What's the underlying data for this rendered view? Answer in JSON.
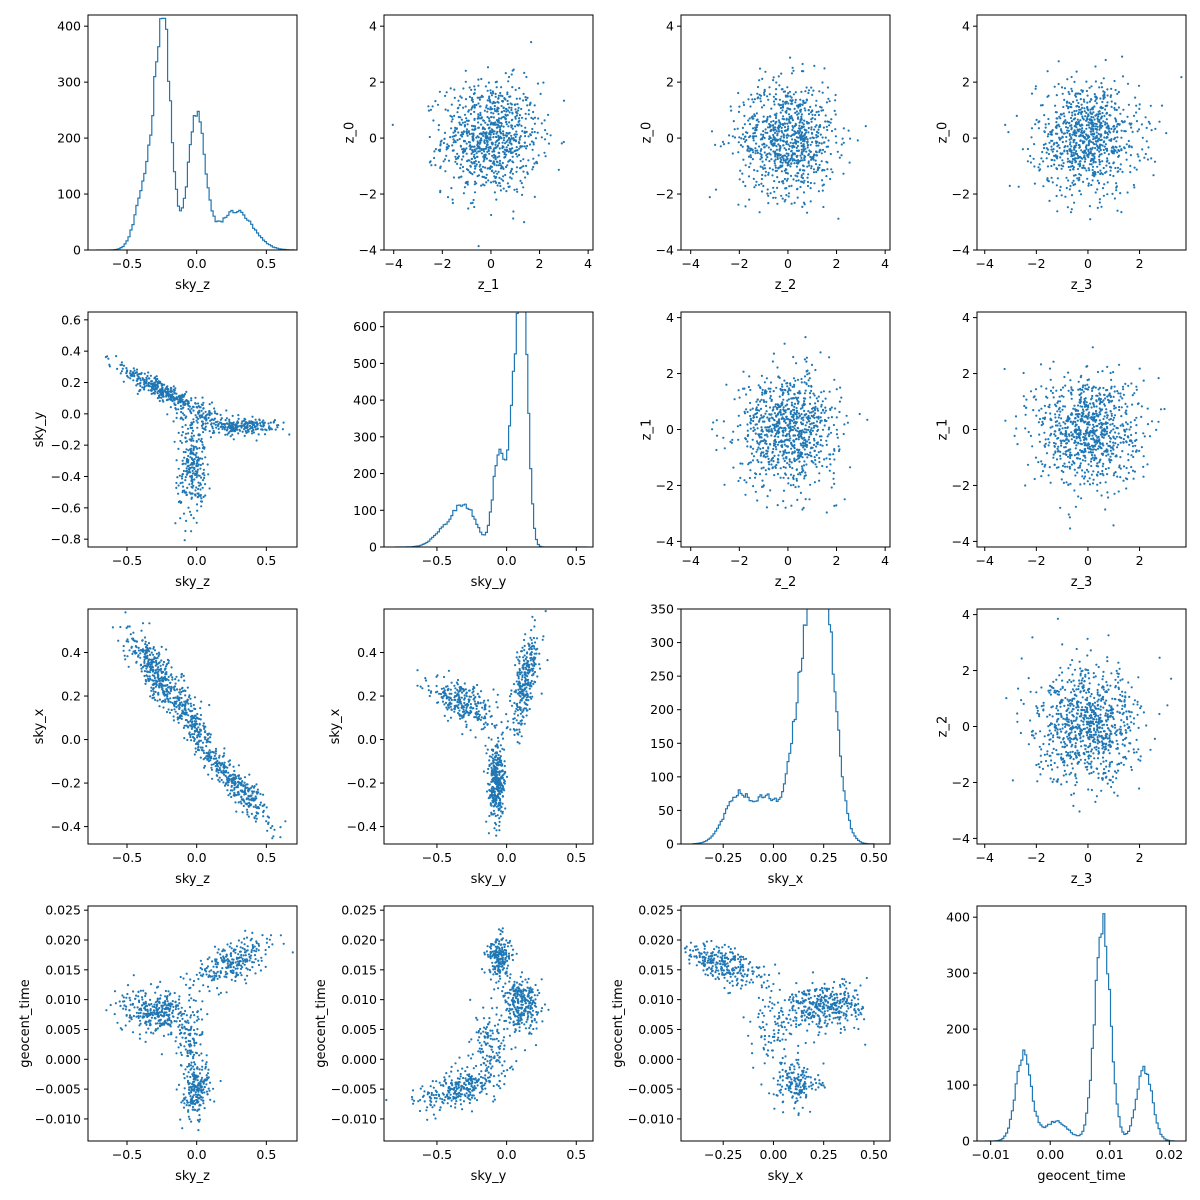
{
  "figure": {
    "type": "corner_plot",
    "marker_color": "#1f77b4",
    "background": "#ffffff"
  },
  "chart_data": [
    {
      "row": 0,
      "col": 0,
      "type": "histogram",
      "xlabel": "sky_z",
      "ylabel": "",
      "xlim": [
        -0.78,
        0.72
      ],
      "ylim": [
        0,
        420
      ],
      "xticks": [
        -0.5,
        0.0,
        0.5
      ],
      "xticklabels": [
        "−0.5",
        "0.0",
        "0.5"
      ],
      "yticks": [
        0,
        100,
        200,
        300,
        400
      ],
      "yticklabels": [
        "0",
        "100",
        "200",
        "300",
        "400"
      ],
      "bin_range": [
        -0.72,
        0.7
      ],
      "peaks": [
        {
          "center": -0.24,
          "height": 395,
          "width": 0.055
        },
        {
          "center": 0.0,
          "height": 240,
          "width": 0.06
        },
        {
          "center": -0.36,
          "height": 120,
          "width": 0.07
        },
        {
          "center": 0.28,
          "height": 70,
          "width": 0.12
        }
      ]
    },
    {
      "row": 0,
      "col": 1,
      "type": "scatter",
      "xlabel": "z_1",
      "ylabel": "z_0",
      "xlim": [
        -4.4,
        4.2
      ],
      "ylim": [
        -4.0,
        4.4
      ],
      "xticks": [
        -4,
        -2,
        0,
        2,
        4
      ],
      "xticklabels": [
        "−4",
        "−2",
        "0",
        "2",
        "4"
      ],
      "yticks": [
        -4,
        -2,
        0,
        2,
        4
      ],
      "yticklabels": [
        "−4",
        "−2",
        "0",
        "2",
        "4"
      ],
      "distribution": "gaussian",
      "mean": [
        0,
        0
      ],
      "std": [
        1,
        1
      ]
    },
    {
      "row": 0,
      "col": 2,
      "type": "scatter",
      "xlabel": "z_2",
      "ylabel": "z_0",
      "xlim": [
        -4.4,
        4.2
      ],
      "ylim": [
        -4.0,
        4.4
      ],
      "xticks": [
        -4,
        -2,
        0,
        2,
        4
      ],
      "xticklabels": [
        "−4",
        "−2",
        "0",
        "2",
        "4"
      ],
      "yticks": [
        -4,
        -2,
        0,
        2,
        4
      ],
      "yticklabels": [
        "−4",
        "−2",
        "0",
        "2",
        "4"
      ],
      "distribution": "gaussian",
      "mean": [
        0,
        0
      ],
      "std": [
        1,
        1
      ]
    },
    {
      "row": 0,
      "col": 3,
      "type": "scatter",
      "xlabel": "z_3",
      "ylabel": "z_0",
      "xlim": [
        -4.3,
        3.8
      ],
      "ylim": [
        -4.0,
        4.4
      ],
      "xticks": [
        -4,
        -2,
        0,
        2
      ],
      "xticklabels": [
        "−4",
        "−2",
        "0",
        "2"
      ],
      "yticks": [
        -4,
        -2,
        0,
        2,
        4
      ],
      "yticklabels": [
        "−4",
        "−2",
        "0",
        "2",
        "4"
      ],
      "distribution": "gaussian",
      "mean": [
        0,
        0
      ],
      "std": [
        1,
        1
      ]
    },
    {
      "row": 1,
      "col": 0,
      "type": "scatter",
      "xlabel": "sky_z",
      "ylabel": "sky_y",
      "xlim": [
        -0.78,
        0.72
      ],
      "ylim": [
        -0.85,
        0.65
      ],
      "xticks": [
        -0.5,
        0.0,
        0.5
      ],
      "xticklabels": [
        "−0.5",
        "0.0",
        "0.5"
      ],
      "yticks": [
        -0.8,
        -0.6,
        -0.4,
        -0.2,
        0.0,
        0.2,
        0.4,
        0.6
      ],
      "yticklabels": [
        "−0.8",
        "−0.6",
        "−0.4",
        "−0.2",
        "0.0",
        "0.2",
        "0.4",
        "0.6"
      ],
      "distribution": "clusters",
      "clusters": [
        {
          "mean": [
            -0.25,
            0.15
          ],
          "std": [
            0.16,
            0.03
          ],
          "slope": -0.45,
          "weight": 0.35
        },
        {
          "mean": 0.3,
          "std": [
            0.16,
            0.03
          ],
          "weight": 0
        },
        {
          "mean": [
            0.3,
            -0.08
          ],
          "std": [
            0.14,
            0.025
          ],
          "weight": 0.25
        },
        {
          "mean": [
            -0.03,
            -0.35
          ],
          "std": [
            0.05,
            0.15
          ],
          "weight": 0.3
        },
        {
          "mean": [
            0.0,
            -0.02
          ],
          "std": [
            0.12,
            0.05
          ],
          "weight": 0.1
        }
      ]
    },
    {
      "row": 1,
      "col": 1,
      "type": "histogram",
      "xlabel": "sky_y",
      "ylabel": "",
      "xlim": [
        -0.88,
        0.62
      ],
      "ylim": [
        0,
        640
      ],
      "xticks": [
        -0.5,
        0.0,
        0.5
      ],
      "xticklabels": [
        "−0.5",
        "0.0",
        "0.5"
      ],
      "yticks": [
        0,
        100,
        200,
        300,
        400,
        500,
        600
      ],
      "yticklabels": [
        "0",
        "100",
        "200",
        "300",
        "400",
        "500",
        "600"
      ],
      "bin_range": [
        -0.8,
        0.58
      ],
      "peaks": [
        {
          "center": 0.12,
          "height": 600,
          "width": 0.035
        },
        {
          "center": 0.06,
          "height": 380,
          "width": 0.05
        },
        {
          "center": -0.06,
          "height": 230,
          "width": 0.04
        },
        {
          "center": -0.3,
          "height": 110,
          "width": 0.08
        },
        {
          "center": -0.45,
          "height": 40,
          "width": 0.08
        }
      ]
    },
    {
      "row": 1,
      "col": 2,
      "type": "scatter",
      "xlabel": "z_2",
      "ylabel": "z_1",
      "xlim": [
        -4.4,
        4.2
      ],
      "ylim": [
        -4.2,
        4.2
      ],
      "xticks": [
        -4,
        -2,
        0,
        2,
        4
      ],
      "xticklabels": [
        "−4",
        "−2",
        "0",
        "2",
        "4"
      ],
      "yticks": [
        -4,
        -2,
        0,
        2,
        4
      ],
      "yticklabels": [
        "−4",
        "−2",
        "0",
        "2",
        "4"
      ],
      "distribution": "gaussian",
      "mean": [
        0,
        0
      ],
      "std": [
        1,
        1
      ]
    },
    {
      "row": 1,
      "col": 3,
      "type": "scatter",
      "xlabel": "z_3",
      "ylabel": "z_1",
      "xlim": [
        -4.3,
        3.8
      ],
      "ylim": [
        -4.2,
        4.2
      ],
      "xticks": [
        -4,
        -2,
        0,
        2
      ],
      "xticklabels": [
        "−4",
        "−2",
        "0",
        "2"
      ],
      "yticks": [
        -4,
        -2,
        0,
        2,
        4
      ],
      "yticklabels": [
        "−4",
        "−2",
        "0",
        "2",
        "4"
      ],
      "distribution": "gaussian",
      "mean": [
        0,
        0
      ],
      "std": [
        1,
        1
      ]
    },
    {
      "row": 2,
      "col": 0,
      "type": "scatter",
      "xlabel": "sky_z",
      "ylabel": "sky_x",
      "xlim": [
        -0.78,
        0.72
      ],
      "ylim": [
        -0.48,
        0.6
      ],
      "xticks": [
        -0.5,
        0.0,
        0.5
      ],
      "xticklabels": [
        "−0.5",
        "0.0",
        "0.5"
      ],
      "yticks": [
        -0.4,
        -0.2,
        0.0,
        0.2,
        0.4
      ],
      "yticklabels": [
        "−0.4",
        "−0.2",
        "0.0",
        "0.2",
        "0.4"
      ],
      "distribution": "clusters",
      "clusters": [
        {
          "mean": [
            -0.25,
            0.28
          ],
          "std": [
            0.12,
            0.06
          ],
          "slope": -0.7,
          "weight": 0.45
        },
        {
          "mean": [
            0.0,
            0.05
          ],
          "std": [
            0.08,
            0.05
          ],
          "slope": -0.8,
          "weight": 0.2
        },
        {
          "mean": [
            0.3,
            -0.22
          ],
          "std": [
            0.12,
            0.04
          ],
          "slope": -0.6,
          "weight": 0.35
        }
      ]
    },
    {
      "row": 2,
      "col": 1,
      "type": "scatter",
      "xlabel": "sky_y",
      "ylabel": "sky_x",
      "xlim": [
        -0.88,
        0.62
      ],
      "ylim": [
        -0.48,
        0.6
      ],
      "xticks": [
        -0.5,
        0.0,
        0.5
      ],
      "xticklabels": [
        "−0.5",
        "0.0",
        "0.5"
      ],
      "yticks": [
        -0.4,
        -0.2,
        0.0,
        0.2,
        0.4
      ],
      "yticklabels": [
        "−0.4",
        "−0.2",
        "0.0",
        "0.2",
        "0.4"
      ],
      "distribution": "clusters",
      "clusters": [
        {
          "mean": [
            -0.3,
            0.17
          ],
          "std": [
            0.12,
            0.05
          ],
          "slope": -0.3,
          "weight": 0.3
        },
        {
          "mean": [
            0.13,
            0.28
          ],
          "std": [
            0.05,
            0.1
          ],
          "slope": 1.5,
          "weight": 0.35
        },
        {
          "mean": [
            -0.07,
            -0.2
          ],
          "std": [
            0.03,
            0.09
          ],
          "weight": 0.35
        }
      ]
    },
    {
      "row": 2,
      "col": 2,
      "type": "histogram",
      "xlabel": "sky_x",
      "ylabel": "",
      "xlim": [
        -0.46,
        0.58
      ],
      "ylim": [
        0,
        350
      ],
      "xticks": [
        -0.25,
        0.0,
        0.25,
        0.5
      ],
      "xticklabels": [
        "−0.25",
        "0.00",
        "0.25",
        "0.50"
      ],
      "yticks": [
        0,
        50,
        100,
        150,
        200,
        250,
        300,
        350
      ],
      "yticklabels": [
        "0",
        "50",
        "100",
        "150",
        "200",
        "250",
        "300",
        "350"
      ],
      "bin_range": [
        -0.4,
        0.5
      ],
      "peaks": [
        {
          "center": 0.25,
          "height": 320,
          "width": 0.06
        },
        {
          "center": 0.16,
          "height": 230,
          "width": 0.07
        },
        {
          "center": -0.17,
          "height": 75,
          "width": 0.07
        },
        {
          "center": -0.03,
          "height": 55,
          "width": 0.05
        }
      ]
    },
    {
      "row": 2,
      "col": 3,
      "type": "scatter",
      "xlabel": "z_3",
      "ylabel": "z_2",
      "xlim": [
        -4.3,
        3.8
      ],
      "ylim": [
        -4.2,
        4.2
      ],
      "xticks": [
        -4,
        -2,
        0,
        2
      ],
      "xticklabels": [
        "−4",
        "−2",
        "0",
        "2"
      ],
      "yticks": [
        -4,
        -2,
        0,
        2,
        4
      ],
      "yticklabels": [
        "−4",
        "−2",
        "0",
        "2",
        "4"
      ],
      "distribution": "gaussian",
      "mean": [
        0,
        0
      ],
      "std": [
        1,
        1
      ]
    },
    {
      "row": 3,
      "col": 0,
      "type": "scatter",
      "xlabel": "sky_z",
      "ylabel": "geocent_time",
      "xlim": [
        -0.78,
        0.72
      ],
      "ylim": [
        -0.0137,
        0.0257
      ],
      "xticks": [
        -0.5,
        0.0,
        0.5
      ],
      "xticklabels": [
        "−0.5",
        "0.0",
        "0.5"
      ],
      "yticks": [
        -0.01,
        -0.005,
        0.0,
        0.005,
        0.01,
        0.015,
        0.02,
        0.025
      ],
      "yticklabels": [
        "−0.010",
        "−0.005",
        "0.000",
        "0.005",
        "0.010",
        "0.015",
        "0.020",
        "0.025"
      ],
      "distribution": "clusters",
      "clusters": [
        {
          "mean": [
            -0.3,
            0.008
          ],
          "std": [
            0.12,
            0.0018
          ],
          "weight": 0.35
        },
        {
          "mean": [
            0.25,
            0.016
          ],
          "std": [
            0.15,
            0.0018
          ],
          "slope": 0.008,
          "weight": 0.3
        },
        {
          "mean": [
            0.0,
            -0.005
          ],
          "std": [
            0.05,
            0.0022
          ],
          "weight": 0.25
        },
        {
          "mean": [
            -0.05,
            0.003
          ],
          "std": [
            0.05,
            0.003
          ],
          "weight": 0.1
        }
      ]
    },
    {
      "row": 3,
      "col": 1,
      "type": "scatter",
      "xlabel": "sky_y",
      "ylabel": "geocent_time",
      "xlim": [
        -0.88,
        0.62
      ],
      "ylim": [
        -0.0137,
        0.0257
      ],
      "xticks": [
        -0.5,
        0.0,
        0.5
      ],
      "xticklabels": [
        "−0.5",
        "0.0",
        "0.5"
      ],
      "yticks": [
        -0.01,
        -0.005,
        0.0,
        0.005,
        0.01,
        0.015,
        0.02,
        0.025
      ],
      "yticklabels": [
        "−0.010",
        "−0.005",
        "0.000",
        "0.005",
        "0.010",
        "0.015",
        "0.020",
        "0.025"
      ],
      "distribution": "clusters",
      "clusters": [
        {
          "mean": [
            -0.35,
            -0.005
          ],
          "std": [
            0.14,
            0.0015
          ],
          "slope": 0.006,
          "weight": 0.3
        },
        {
          "mean": [
            0.1,
            0.009
          ],
          "std": [
            0.07,
            0.0022
          ],
          "weight": 0.35
        },
        {
          "mean": [
            -0.05,
            0.017
          ],
          "std": [
            0.04,
            0.0018
          ],
          "weight": 0.2
        },
        {
          "mean": [
            -0.12,
            0.002
          ],
          "std": [
            0.07,
            0.003
          ],
          "weight": 0.15
        }
      ]
    },
    {
      "row": 3,
      "col": 2,
      "type": "scatter",
      "xlabel": "sky_x",
      "ylabel": "geocent_time",
      "xlim": [
        -0.46,
        0.58
      ],
      "ylim": [
        -0.0137,
        0.0257
      ],
      "xticks": [
        -0.25,
        0.0,
        0.25,
        0.5
      ],
      "xticklabels": [
        "−0.25",
        "0.00",
        "0.25",
        "0.50"
      ],
      "yticks": [
        -0.01,
        -0.005,
        0.0,
        0.005,
        0.01,
        0.015,
        0.02,
        0.025
      ],
      "yticklabels": [
        "−0.010",
        "−0.005",
        "0.000",
        "0.005",
        "0.010",
        "0.015",
        "0.020",
        "0.025"
      ],
      "distribution": "clusters",
      "clusters": [
        {
          "mean": [
            -0.25,
            0.016
          ],
          "std": [
            0.1,
            0.0015
          ],
          "slope": -0.01,
          "weight": 0.3
        },
        {
          "mean": [
            0.25,
            0.009
          ],
          "std": [
            0.1,
            0.0018
          ],
          "weight": 0.4
        },
        {
          "mean": [
            0.12,
            -0.004
          ],
          "std": [
            0.06,
            0.002
          ],
          "weight": 0.2
        },
        {
          "mean": [
            0.0,
            0.005
          ],
          "std": [
            0.06,
            0.003
          ],
          "weight": 0.1
        }
      ]
    },
    {
      "row": 3,
      "col": 3,
      "type": "histogram",
      "xlabel": "geocent_time",
      "ylabel": "",
      "xlim": [
        -0.0123,
        0.0228
      ],
      "ylim": [
        0,
        420
      ],
      "xticks": [
        -0.01,
        0.0,
        0.01,
        0.02
      ],
      "xticklabels": [
        "−0.01",
        "0.00",
        "0.01",
        "0.02"
      ],
      "yticks": [
        0,
        100,
        200,
        300,
        400
      ],
      "yticklabels": [
        "0",
        "100",
        "200",
        "300",
        "400"
      ],
      "bin_range": [
        -0.011,
        0.021
      ],
      "peaks": [
        {
          "center": 0.0088,
          "height": 390,
          "width": 0.0013
        },
        {
          "center": -0.0045,
          "height": 155,
          "width": 0.0013
        },
        {
          "center": 0.0158,
          "height": 130,
          "width": 0.0013
        },
        {
          "center": 0.001,
          "height": 35,
          "width": 0.002
        }
      ]
    }
  ]
}
